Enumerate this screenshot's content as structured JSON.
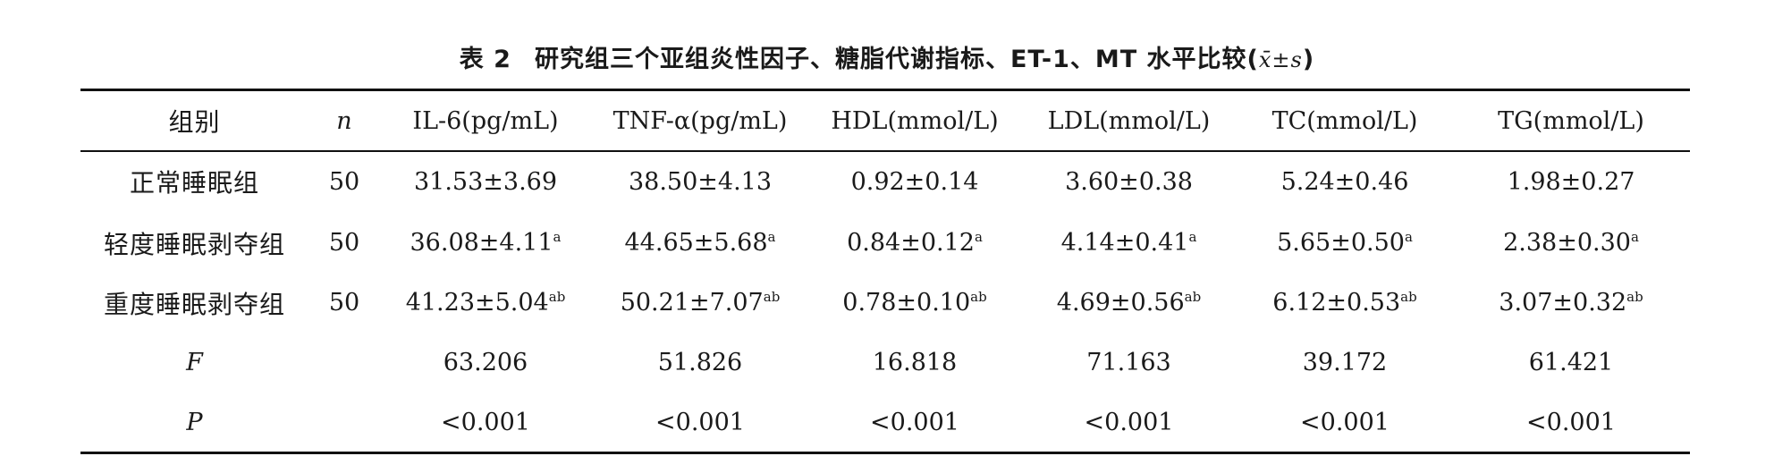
{
  "caption": {
    "number": "表 2",
    "title": "研究组三个亚组炎性因子、糖脂代谢指标、ET-1、MT 水平比较(",
    "stat": "x̄±s",
    "close": ")"
  },
  "table": {
    "headers": [
      "组别",
      "n",
      "IL-6(pg/mL)",
      "TNF-α(pg/mL)",
      "HDL(mmol/L)",
      "LDL(mmol/L)",
      "TC(mmol/L)",
      "TG(mmol/L)"
    ],
    "rows": [
      {
        "group": "正常睡眠组",
        "n": "50",
        "cells": [
          {
            "v": "31.53±3.69",
            "s": ""
          },
          {
            "v": "38.50±4.13",
            "s": ""
          },
          {
            "v": "0.92±0.14",
            "s": ""
          },
          {
            "v": "3.60±0.38",
            "s": ""
          },
          {
            "v": "5.24±0.46",
            "s": ""
          },
          {
            "v": "1.98±0.27",
            "s": ""
          }
        ]
      },
      {
        "group": "轻度睡眠剥夺组",
        "n": "50",
        "cells": [
          {
            "v": "36.08±4.11",
            "s": "a"
          },
          {
            "v": "44.65±5.68",
            "s": "a"
          },
          {
            "v": "0.84±0.12",
            "s": "a"
          },
          {
            "v": "4.14±0.41",
            "s": "a"
          },
          {
            "v": "5.65±0.50",
            "s": "a"
          },
          {
            "v": "2.38±0.30",
            "s": "a"
          }
        ]
      },
      {
        "group": "重度睡眠剥夺组",
        "n": "50",
        "cells": [
          {
            "v": "41.23±5.04",
            "s": "ab"
          },
          {
            "v": "50.21±7.07",
            "s": "ab"
          },
          {
            "v": "0.78±0.10",
            "s": "ab"
          },
          {
            "v": "4.69±0.56",
            "s": "ab"
          },
          {
            "v": "6.12±0.53",
            "s": "ab"
          },
          {
            "v": "3.07±0.32",
            "s": "ab"
          }
        ]
      }
    ],
    "stats": [
      {
        "label": "F",
        "values": [
          "63.206",
          "51.826",
          "16.818",
          "71.163",
          "39.172",
          "61.421"
        ]
      },
      {
        "label": "P",
        "values": [
          "<0.001",
          "<0.001",
          "<0.001",
          "<0.001",
          "<0.001",
          "<0.001"
        ]
      }
    ]
  }
}
